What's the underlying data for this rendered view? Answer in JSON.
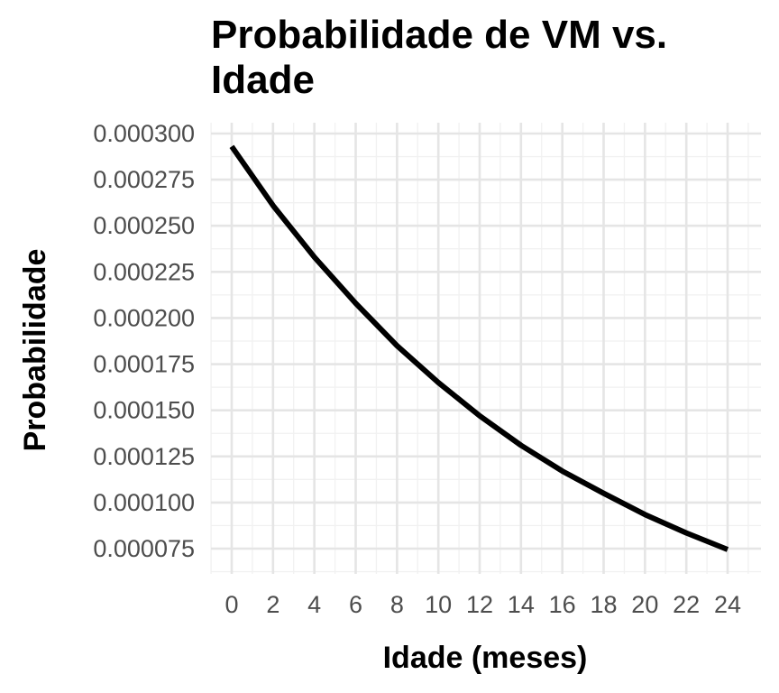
{
  "chart_data": {
    "type": "line",
    "title": "Probabilidade de VM vs. Idade",
    "xlabel": "Idade (meses)",
    "ylabel": "Probabilidade",
    "xlim": [
      0,
      24
    ],
    "ylim": [
      7e-05,
      0.0003
    ],
    "x_ticks": [
      0,
      2,
      4,
      6,
      8,
      10,
      12,
      14,
      16,
      18,
      20,
      22,
      24
    ],
    "y_ticks": [
      "0.000075",
      "0.000100",
      "0.000125",
      "0.000150",
      "0.000175",
      "0.000200",
      "0.000225",
      "0.000250",
      "0.000275",
      "0.000300"
    ],
    "grid": true,
    "legend": "none",
    "line_color": "#000000",
    "series": [
      {
        "x": [
          0,
          2,
          4,
          6,
          8,
          10,
          12,
          14,
          16,
          18,
          20,
          22,
          24
        ],
        "values": [
          0.000293,
          0.000261,
          0.000233,
          0.000208,
          0.000185,
          0.000165,
          0.000147,
          0.000131,
          0.000117,
          0.000105,
          9.35e-05,
          8.35e-05,
          7.45e-05
        ]
      }
    ]
  }
}
